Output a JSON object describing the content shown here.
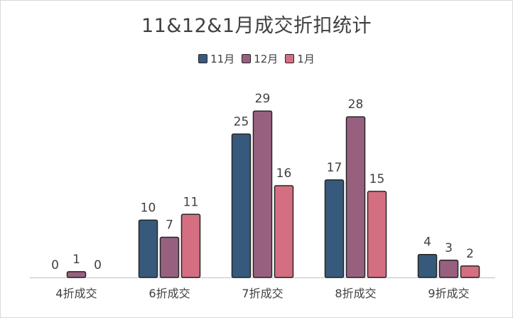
{
  "chart_data": {
    "type": "bar",
    "title": "11&12&1月成交折扣统计",
    "categories": [
      "4折成交",
      "6折成交",
      "7折成交",
      "8折成交",
      "9折成交"
    ],
    "series": [
      {
        "name": "11月",
        "color": "#375a7c",
        "values": [
          0,
          10,
          25,
          17,
          4
        ]
      },
      {
        "name": "12月",
        "color": "#98607f",
        "values": [
          1,
          7,
          29,
          28,
          3
        ]
      },
      {
        "name": "1月",
        "color": "#d46f82",
        "values": [
          0,
          11,
          16,
          15,
          2
        ]
      }
    ],
    "ylim": [
      0,
      31
    ],
    "grid": false,
    "legend": "top",
    "data_labels": true
  }
}
